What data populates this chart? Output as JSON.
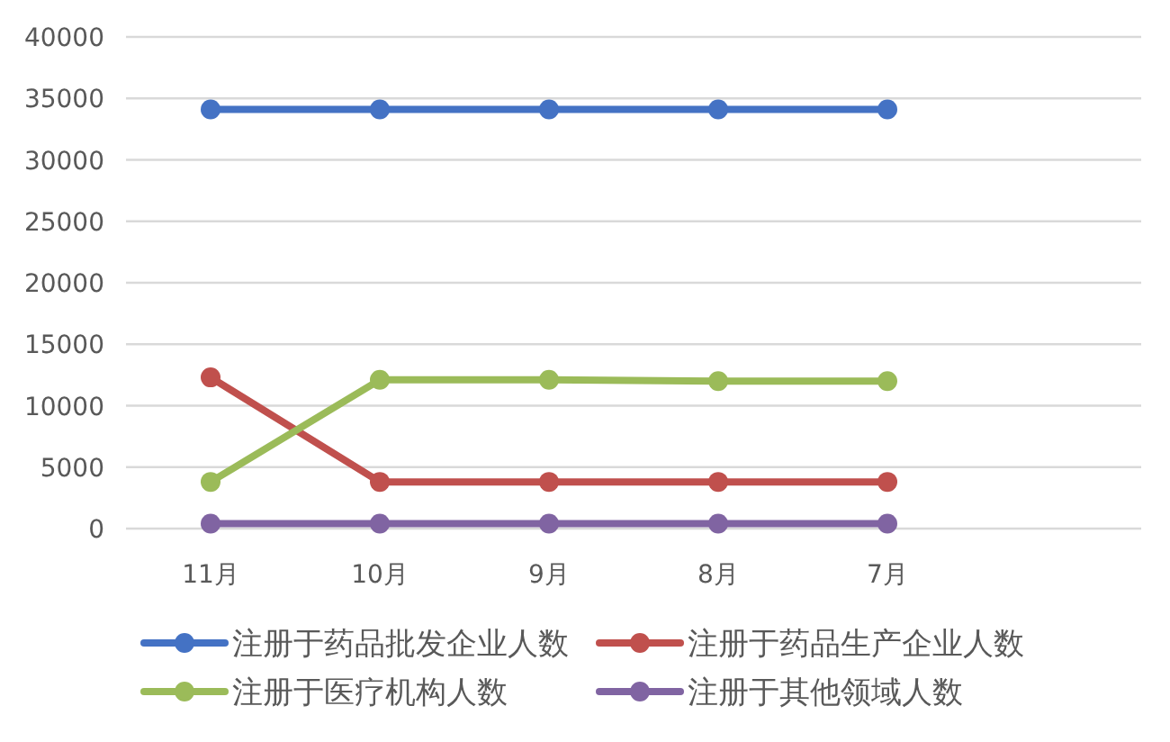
{
  "chart_data": {
    "type": "line",
    "categories": [
      "11月",
      "10月",
      "9月",
      "8月",
      "7月",
      null
    ],
    "series": [
      {
        "name": "注册于药品批发企业人数",
        "color": "#4472c4",
        "values": [
          34100,
          34100,
          34100,
          34100,
          34100,
          null
        ]
      },
      {
        "name": "注册于药品生产企业人数",
        "color": "#c0504d",
        "values": [
          12300,
          3800,
          3800,
          3800,
          3800,
          null
        ]
      },
      {
        "name": "注册于医疗机构人数",
        "color": "#9bbb59",
        "values": [
          3800,
          12100,
          12100,
          12000,
          12000,
          null
        ]
      },
      {
        "name": "注册于其他领域人数",
        "color": "#8064a2",
        "values": [
          400,
          400,
          400,
          400,
          400,
          null
        ]
      }
    ],
    "ylim": [
      0,
      40000
    ],
    "yticks": [
      0,
      5000,
      10000,
      15000,
      20000,
      25000,
      30000,
      35000,
      40000
    ],
    "grid": "y",
    "legend": "bottom",
    "marker": "circle",
    "line_style": "solid"
  }
}
